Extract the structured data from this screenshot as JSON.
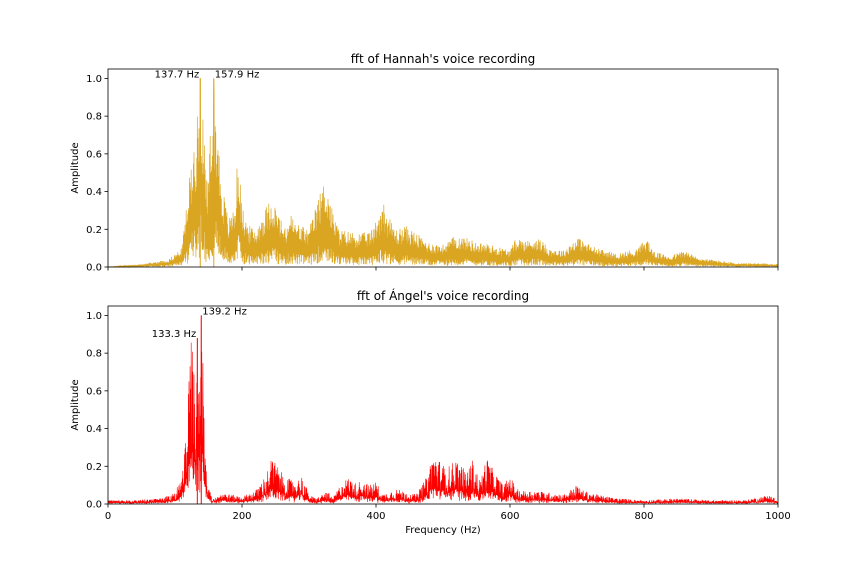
{
  "chart_data": [
    {
      "type": "line",
      "title": "fft of Hannah's voice recording",
      "xlabel": "",
      "ylabel": "Amplitude",
      "xlim": [
        0,
        1000
      ],
      "ylim": [
        0,
        1.05
      ],
      "xticks": [
        0,
        200,
        400,
        600,
        800,
        1000
      ],
      "xtick_labels_visible": false,
      "yticks": [
        0.0,
        0.2,
        0.4,
        0.6,
        0.8,
        1.0
      ],
      "ytick_labels": [
        "0.0",
        "0.2",
        "0.4",
        "0.6",
        "0.8",
        "1.0"
      ],
      "grid": false,
      "color": "#DAA520",
      "annotations": [
        {
          "text": "137.7 Hz",
          "x": 137.7,
          "y": 1.0,
          "align": "right"
        },
        {
          "text": "157.9 Hz",
          "x": 157.9,
          "y": 1.0,
          "align": "left"
        }
      ],
      "envelope": {
        "x": [
          0,
          50,
          90,
          110,
          118,
          125,
          132,
          137.7,
          142,
          148,
          152,
          157.9,
          163,
          170,
          180,
          190,
          194,
          200,
          210,
          220,
          230,
          245,
          255,
          265,
          272,
          280,
          290,
          300,
          315,
          325,
          335,
          345,
          360,
          380,
          395,
          410,
          420,
          430,
          445,
          460,
          480,
          500,
          520,
          540,
          550,
          560,
          570,
          580,
          600,
          610,
          625,
          640,
          660,
          680,
          700,
          710,
          730,
          760,
          790,
          800,
          805,
          815,
          840,
          860,
          880,
          900,
          920,
          940,
          970,
          1000
        ],
        "y": [
          0.0,
          0.015,
          0.04,
          0.1,
          0.35,
          0.6,
          0.75,
          1.0,
          0.85,
          0.35,
          0.7,
          1.0,
          0.75,
          0.45,
          0.25,
          0.35,
          0.63,
          0.32,
          0.22,
          0.2,
          0.28,
          0.38,
          0.28,
          0.2,
          0.29,
          0.24,
          0.22,
          0.2,
          0.38,
          0.48,
          0.3,
          0.2,
          0.19,
          0.18,
          0.2,
          0.36,
          0.26,
          0.2,
          0.22,
          0.18,
          0.13,
          0.12,
          0.17,
          0.15,
          0.13,
          0.13,
          0.12,
          0.11,
          0.09,
          0.16,
          0.14,
          0.16,
          0.1,
          0.09,
          0.16,
          0.14,
          0.1,
          0.07,
          0.1,
          0.14,
          0.15,
          0.08,
          0.06,
          0.09,
          0.05,
          0.04,
          0.03,
          0.02,
          0.02,
          0.015
        ]
      }
    },
    {
      "type": "line",
      "title": "fft of Ángel's voice recording",
      "xlabel": "Frequency (Hz)",
      "ylabel": "Amplitude",
      "xlim": [
        0,
        1000
      ],
      "ylim": [
        0,
        1.05
      ],
      "xticks": [
        0,
        200,
        400,
        600,
        800,
        1000
      ],
      "xtick_labels": [
        "0",
        "200",
        "400",
        "600",
        "800",
        "1000"
      ],
      "yticks": [
        0.0,
        0.2,
        0.4,
        0.6,
        0.8,
        1.0
      ],
      "ytick_labels": [
        "0.0",
        "0.2",
        "0.4",
        "0.6",
        "0.8",
        "1.0"
      ],
      "grid": false,
      "color": "#FF0000",
      "annotations": [
        {
          "text": "133.3 Hz",
          "x": 133.3,
          "y": 0.88,
          "align": "right"
        },
        {
          "text": "139.2 Hz",
          "x": 139.2,
          "y": 1.0,
          "align": "left"
        }
      ],
      "envelope": {
        "x": [
          0,
          40,
          80,
          100,
          110,
          118,
          122,
          126,
          130,
          133.3,
          136,
          139.2,
          142,
          146,
          150,
          160,
          170,
          200,
          220,
          235,
          245,
          255,
          265,
          280,
          290,
          300,
          310,
          320,
          327,
          335,
          350,
          360,
          370,
          380,
          390,
          400,
          410,
          430,
          460,
          475,
          485,
          495,
          505,
          520,
          535,
          545,
          555,
          565,
          575,
          590,
          600,
          610,
          620,
          640,
          660,
          680,
          700,
          710,
          730,
          760,
          800,
          850,
          900,
          950,
          990,
          1000
        ],
        "y": [
          0.02,
          0.02,
          0.03,
          0.06,
          0.15,
          0.45,
          0.8,
          0.92,
          0.55,
          0.88,
          0.7,
          1.0,
          0.72,
          0.2,
          0.08,
          0.04,
          0.06,
          0.04,
          0.07,
          0.15,
          0.25,
          0.19,
          0.14,
          0.12,
          0.15,
          0.05,
          0.03,
          0.05,
          0.07,
          0.03,
          0.12,
          0.14,
          0.11,
          0.13,
          0.1,
          0.12,
          0.05,
          0.08,
          0.05,
          0.14,
          0.27,
          0.23,
          0.19,
          0.24,
          0.17,
          0.24,
          0.12,
          0.25,
          0.18,
          0.1,
          0.15,
          0.08,
          0.07,
          0.07,
          0.06,
          0.05,
          0.1,
          0.07,
          0.05,
          0.03,
          0.02,
          0.03,
          0.02,
          0.02,
          0.05,
          0.01
        ]
      }
    }
  ]
}
